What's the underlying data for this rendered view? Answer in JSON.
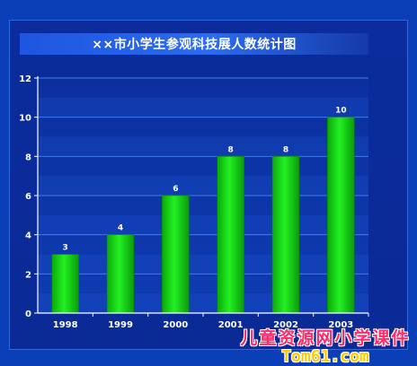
{
  "chart_data": {
    "type": "bar",
    "title": "××市小学生参观科技展人数统计图",
    "categories": [
      "1998",
      "1999",
      "2000",
      "2001",
      "2002",
      "2003"
    ],
    "values": [
      3,
      4,
      6,
      8,
      8,
      10
    ],
    "ylim": [
      0,
      12
    ],
    "yticks": [
      0,
      2,
      4,
      6,
      8,
      10,
      12
    ],
    "grid": true,
    "xlabel": "",
    "ylabel": "",
    "colors": {
      "bar": "#11d611",
      "bar_dark": "#069a06",
      "label": "#ffffff",
      "axis": "#ffffff"
    }
  },
  "watermark": {
    "line1": "儿童资源网小学课件",
    "line2": "Tom61.com"
  }
}
